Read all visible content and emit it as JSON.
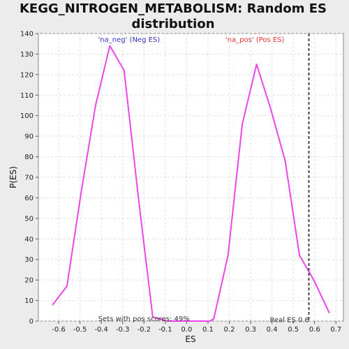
{
  "chart_data": {
    "type": "line",
    "title_lines": [
      "KEGG_NITROGEN_METABOLISM: Random ES",
      "distribution"
    ],
    "xlabel": "ES",
    "ylabel": "P(ES)",
    "xlim": [
      -0.695,
      0.735
    ],
    "ylim": [
      0,
      140
    ],
    "x_ticks": [
      -0.6,
      -0.5,
      -0.4,
      -0.3,
      -0.2,
      -0.1,
      0.0,
      0.1,
      0.2,
      0.3,
      0.4,
      0.5,
      0.6,
      0.7
    ],
    "x_tick_labels": [
      "-0.6",
      "-0.5",
      "-0.4",
      "-0.3",
      "-0.2",
      "-0.1",
      "0.0",
      "0.1",
      "0.2",
      "0.3",
      "0.4",
      "0.5",
      "0.6",
      "0.7"
    ],
    "y_ticks": [
      0,
      10,
      20,
      30,
      40,
      50,
      60,
      70,
      80,
      90,
      100,
      110,
      120,
      130,
      140
    ],
    "grid": true,
    "series": [
      {
        "color": "#ee44ee",
        "x": [
          -0.628,
          -0.561,
          -0.494,
          -0.427,
          -0.36,
          -0.293,
          -0.226,
          -0.159,
          -0.092,
          -0.025,
          0.042,
          0.109,
          0.127,
          0.194,
          0.261,
          0.328,
          0.395,
          0.462,
          0.529,
          0.596,
          0.669
        ],
        "y": [
          8,
          17,
          63,
          105,
          134,
          122,
          60,
          2,
          0,
          0,
          0,
          0,
          1,
          32,
          96,
          125,
          103,
          78,
          32,
          20,
          4
        ]
      }
    ],
    "annotations": [
      {
        "text": "'na_neg' (Neg ES)",
        "x": -0.27,
        "y": 137,
        "color": "#3333cc"
      },
      {
        "text": "'na_pos' (Pos ES)",
        "x": 0.32,
        "y": 137,
        "color": "#ee3333"
      },
      {
        "text": "Sets with pos scores: 49%",
        "x": -0.2,
        "y": 1,
        "color": "#333333"
      },
      {
        "text": "Real ES 0.6",
        "x": 0.482,
        "y": 0.5,
        "color": "#333333"
      }
    ],
    "reference_line": {
      "x": 0.573,
      "color": "#444444",
      "style": "dashed"
    }
  }
}
